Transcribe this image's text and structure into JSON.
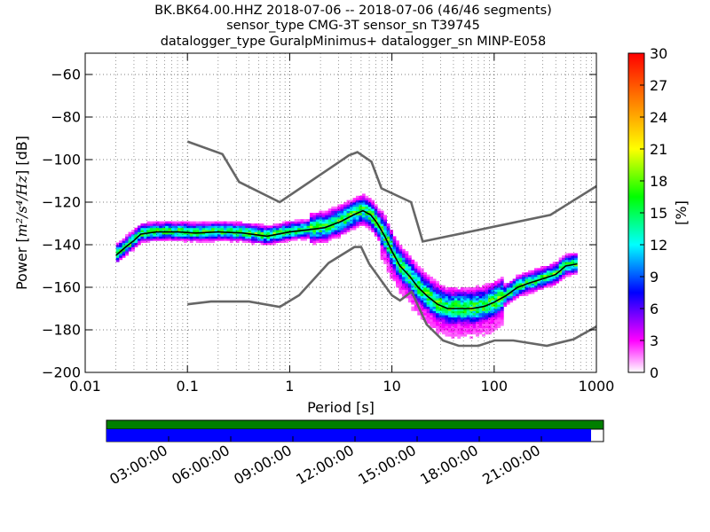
{
  "chart_data": {
    "type": "heatmap",
    "title_lines": [
      "BK.BK64.00.HHZ   2018-07-06 -- 2018-07-06  (46/46 segments)",
      "sensor_type CMG-3T sensor_sn T39745",
      "datalogger_type GuralpMinimus+ datalogger_sn MINP-E058"
    ],
    "xlabel": "Period [s]",
    "ylabel_prefix": "Power [",
    "ylabel_unit": "m²/s⁴/Hz",
    "ylabel_suffix": "] [dB]",
    "x_scale": "log",
    "xlim": [
      0.01,
      1000
    ],
    "ylim": [
      -200,
      -50
    ],
    "x_ticks": [
      {
        "value": 0.01,
        "label": "0.01"
      },
      {
        "value": 0.1,
        "label": "0.1"
      },
      {
        "value": 1,
        "label": "1"
      },
      {
        "value": 10,
        "label": "10"
      },
      {
        "value": 100,
        "label": "100"
      },
      {
        "value": 1000,
        "label": "1000"
      }
    ],
    "y_ticks": [
      {
        "value": -60,
        "label": "−60"
      },
      {
        "value": -80,
        "label": "−80"
      },
      {
        "value": -100,
        "label": "−100"
      },
      {
        "value": -120,
        "label": "−120"
      },
      {
        "value": -140,
        "label": "−140"
      },
      {
        "value": -160,
        "label": "−160"
      },
      {
        "value": -180,
        "label": "−180"
      },
      {
        "value": -200,
        "label": "−200"
      }
    ],
    "grid": "dotted",
    "colorbar": {
      "label": "[%]",
      "range": [
        0,
        30
      ],
      "ticks": [
        "0",
        "3",
        "6",
        "9",
        "12",
        "15",
        "18",
        "21",
        "24",
        "27",
        "30"
      ]
    },
    "nhnm": {
      "name": "New High Noise Model",
      "x": [
        0.1,
        0.22,
        0.32,
        0.8,
        3.8,
        4.6,
        6.3,
        7.9,
        15.4,
        20,
        354.8,
        1000
      ],
      "y": [
        -91.5,
        -97.4,
        -110.5,
        -120,
        -98,
        -96.5,
        -101,
        -113.5,
        -120,
        -138.5,
        -126,
        -112.5
      ]
    },
    "nlnm": {
      "name": "New Low Noise Model",
      "x": [
        0.1,
        0.17,
        0.4,
        0.8,
        1.24,
        2.4,
        4.3,
        5,
        6,
        10,
        12,
        15.6,
        21.9,
        31.6,
        45,
        70,
        101,
        154,
        328,
        600,
        1000
      ],
      "y": [
        -168,
        -166.7,
        -166.7,
        -169.2,
        -163.7,
        -148.6,
        -141.1,
        -141.1,
        -149,
        -163.8,
        -166.2,
        -162.1,
        -177.5,
        -185,
        -187.5,
        -187.5,
        -185,
        -185,
        -187.5,
        -184.4,
        -178.4
      ]
    },
    "mode_curve": {
      "x": [
        0.02,
        0.025,
        0.03,
        0.035,
        0.05,
        0.08,
        0.12,
        0.2,
        0.35,
        0.6,
        1,
        1.5,
        2.2,
        3.2,
        4.2,
        5.2,
        6.2,
        7.2,
        8.5,
        10,
        12,
        15,
        18,
        22,
        28,
        35,
        45,
        60,
        80,
        100,
        130,
        170,
        220,
        300,
        400,
        500,
        650
      ],
      "y": [
        -145,
        -141,
        -138,
        -135,
        -134,
        -134,
        -134.5,
        -134,
        -134.5,
        -136,
        -134,
        -133,
        -132,
        -129,
        -126,
        -124,
        -126,
        -130,
        -136,
        -143,
        -150,
        -155,
        -160,
        -164,
        -168,
        -170,
        -170,
        -170,
        -169,
        -167,
        -164,
        -160,
        -158,
        -156,
        -154,
        -150,
        -149
      ]
    },
    "colormap": "pqlx",
    "timeline": {
      "tick_labels": [
        "03:00:00",
        "06:00:00",
        "09:00:00",
        "12:00:00",
        "15:00:00",
        "18:00:00",
        "21:00:00"
      ],
      "data_fraction": 0.975,
      "colors": {
        "green": "#007f00",
        "blue": "#0000ff"
      }
    }
  }
}
